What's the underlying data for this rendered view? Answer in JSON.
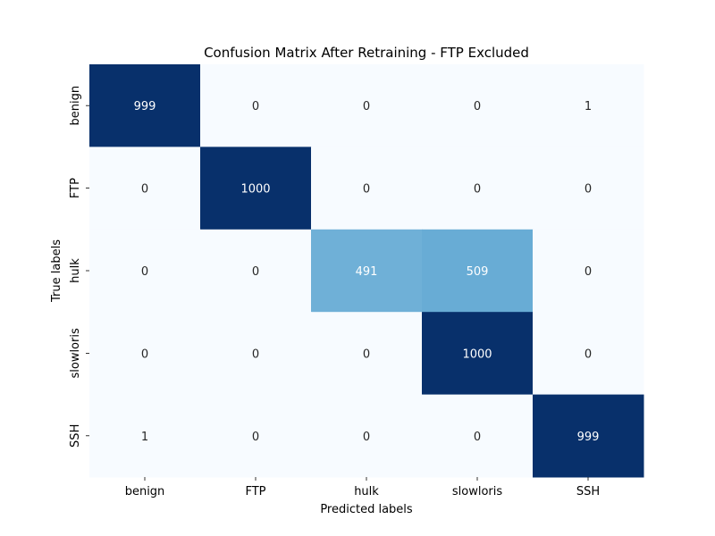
{
  "chart_data": {
    "type": "heatmap",
    "title": "Confusion Matrix After Retraining - FTP Excluded",
    "xlabel": "Predicted labels",
    "ylabel": "True labels",
    "x_categories": [
      "benign",
      "FTP",
      "hulk",
      "slowloris",
      "SSH"
    ],
    "y_categories": [
      "benign",
      "FTP",
      "hulk",
      "slowloris",
      "SSH"
    ],
    "values": [
      [
        999,
        0,
        0,
        0,
        1
      ],
      [
        0,
        1000,
        0,
        0,
        0
      ],
      [
        0,
        0,
        491,
        509,
        0
      ],
      [
        0,
        0,
        0,
        1000,
        0
      ],
      [
        1,
        0,
        0,
        0,
        999
      ]
    ],
    "colormap": "Blues",
    "color_range": [
      0,
      1000
    ],
    "colors": {
      "low": "#f7fbff",
      "high": "#08306b",
      "text_on_dark": "#ffffff",
      "text_on_light": "#262626"
    },
    "colorbar": false,
    "grid": false
  }
}
